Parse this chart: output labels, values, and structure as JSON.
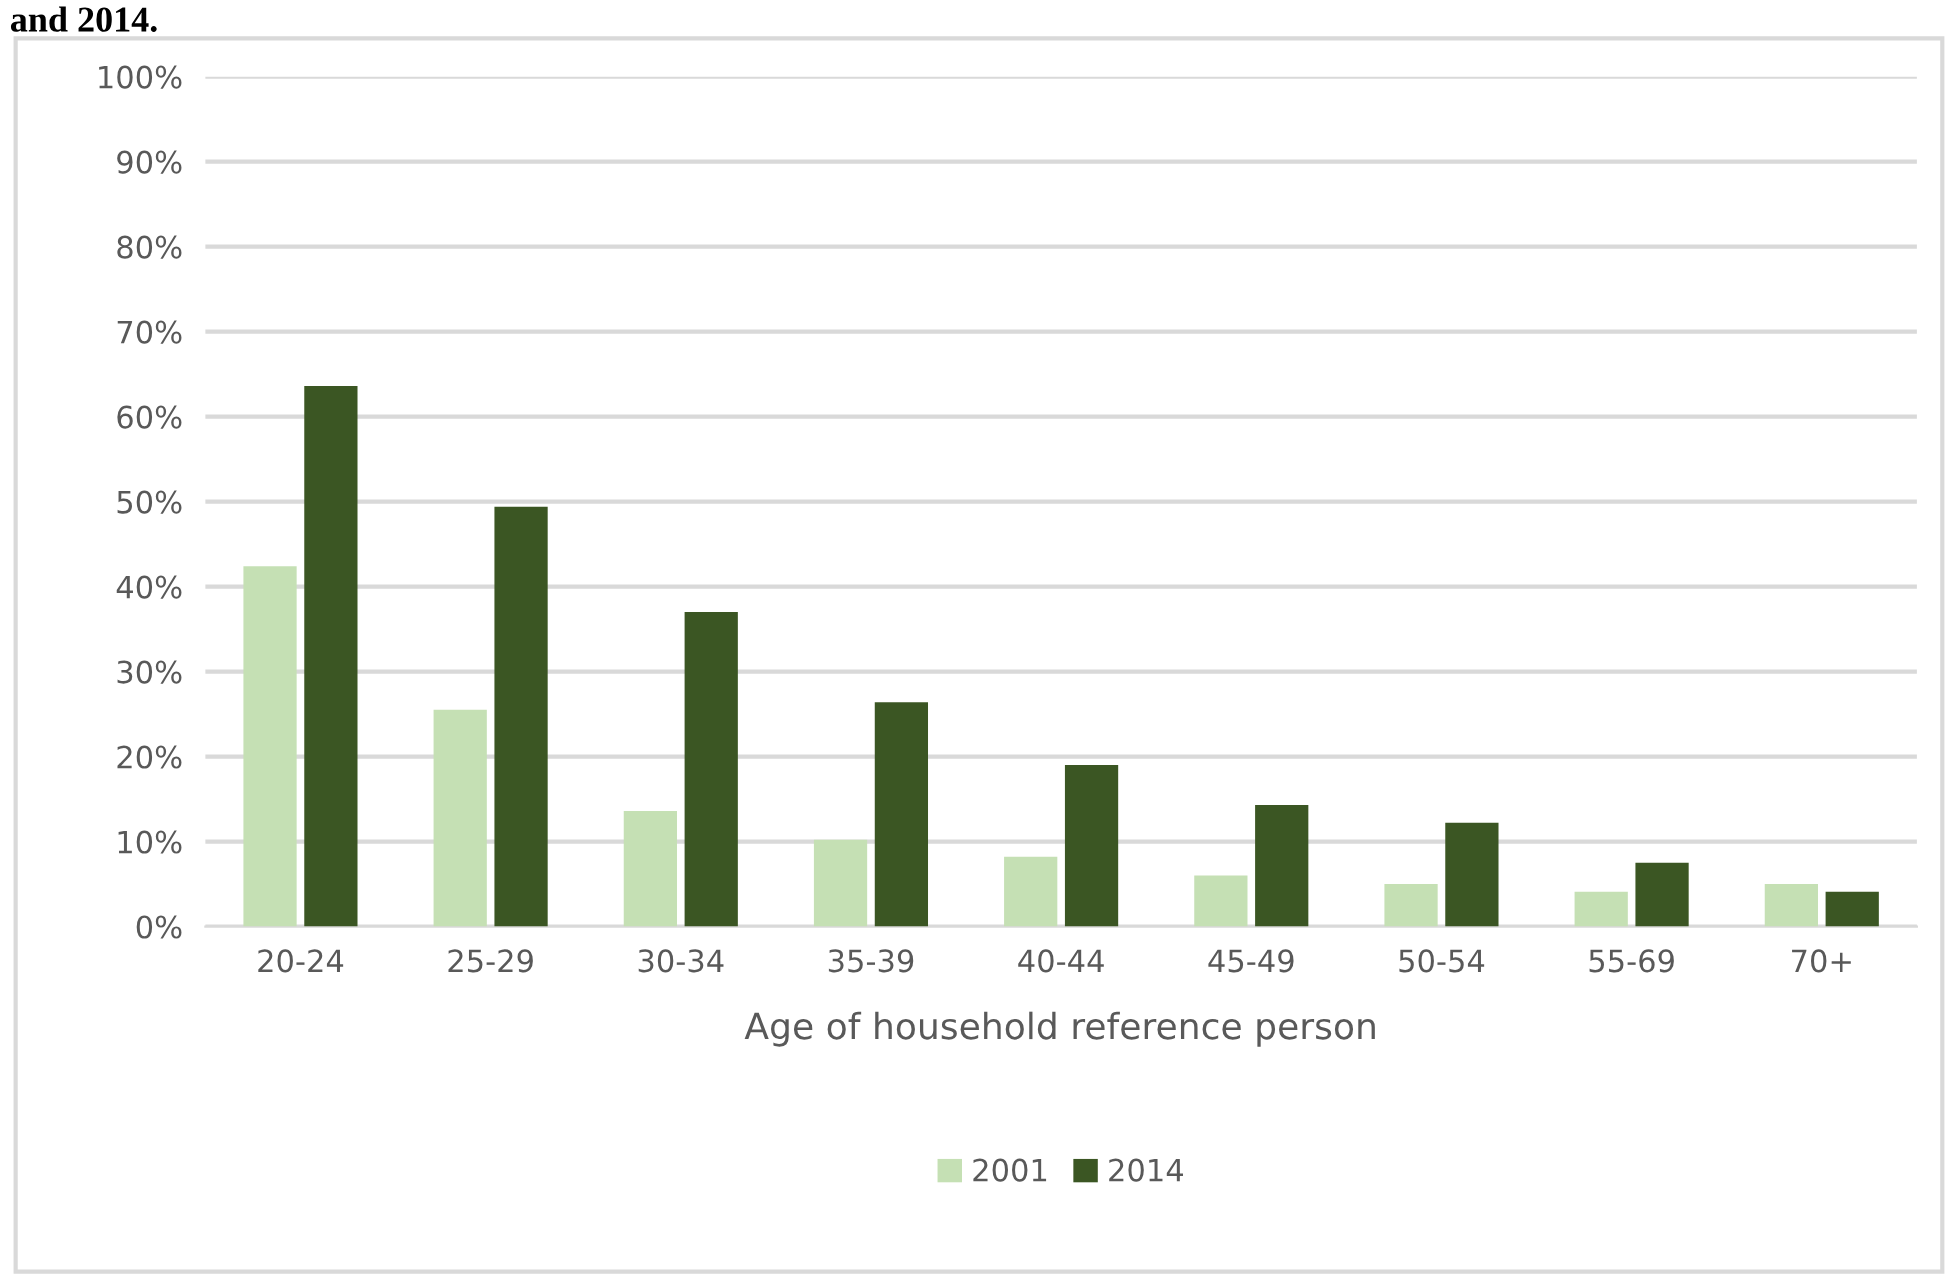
{
  "chart_data": {
    "type": "bar",
    "title": "and 2014.",
    "xlabel": "Age of household reference person",
    "categories": [
      "20-24",
      "25-29",
      "30-34",
      "35-39",
      "40-44",
      "45-49",
      "50-54",
      "55-69",
      "70+"
    ],
    "series": [
      {
        "name": "2001",
        "color": "#c5e0b4",
        "values": [
          42.4,
          25.5,
          13.6,
          10.2,
          8.2,
          6.0,
          5.0,
          4.1,
          5.0
        ]
      },
      {
        "name": "2014",
        "color": "#3b5623",
        "values": [
          63.6,
          49.4,
          37.0,
          26.4,
          19.0,
          14.3,
          12.2,
          7.5,
          4.1
        ]
      }
    ],
    "ylim": [
      0,
      100
    ],
    "yticks": [
      {
        "value": 0,
        "label": "0%"
      },
      {
        "value": 10,
        "label": "10%"
      },
      {
        "value": 20,
        "label": "20%"
      },
      {
        "value": 30,
        "label": "30%"
      },
      {
        "value": 40,
        "label": "40%"
      },
      {
        "value": 50,
        "label": "50%"
      },
      {
        "value": 60,
        "label": "60%"
      },
      {
        "value": 70,
        "label": "70%"
      },
      {
        "value": 80,
        "label": "80%"
      },
      {
        "value": 90,
        "label": "90%"
      },
      {
        "value": 100,
        "label": "100%"
      }
    ],
    "grid": "y",
    "legend": "bottom"
  }
}
